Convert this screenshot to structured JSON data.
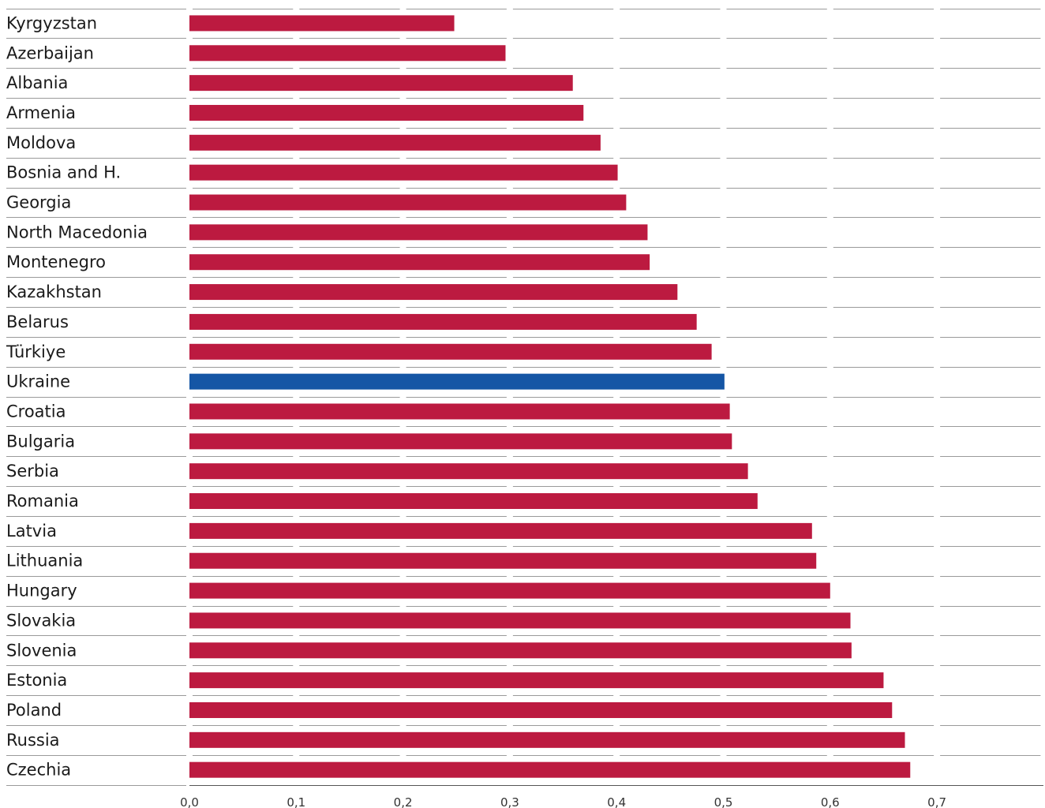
{
  "chart_data": {
    "type": "bar",
    "orientation": "horizontal",
    "categories": [
      "Kyrgyzstan",
      "Azerbaijan",
      "Albania",
      "Armenia",
      "Moldova",
      "Bosnia and H.",
      "Georgia",
      "North Macedonia",
      "Montenegro",
      "Kazakhstan",
      "Belarus",
      "Türkiye",
      "Ukraine",
      "Croatia",
      "Bulgaria",
      "Serbia",
      "Romania",
      "Latvia",
      "Lithuania",
      "Hungary",
      "Slovakia",
      "Slovenia",
      "Estonia",
      "Poland",
      "Russia",
      "Czechia"
    ],
    "values": [
      0.248,
      0.296,
      0.359,
      0.369,
      0.385,
      0.401,
      0.409,
      0.429,
      0.431,
      0.457,
      0.475,
      0.489,
      0.501,
      0.506,
      0.508,
      0.523,
      0.532,
      0.583,
      0.587,
      0.6,
      0.619,
      0.62,
      0.65,
      0.658,
      0.67,
      0.675
    ],
    "highlight": "Ukraine",
    "colors": {
      "default": "#bc1a40",
      "highlight": "#1556a5",
      "grid": "#9a9a9a",
      "axis": "#555555"
    },
    "xlim": [
      0,
      0.8
    ],
    "xticks": [
      "0,0",
      "0,1",
      "0,2",
      "0,3",
      "0,4",
      "0,5",
      "0,6",
      "0,7"
    ],
    "grid": true,
    "title": "",
    "xlabel": "",
    "ylabel": ""
  }
}
